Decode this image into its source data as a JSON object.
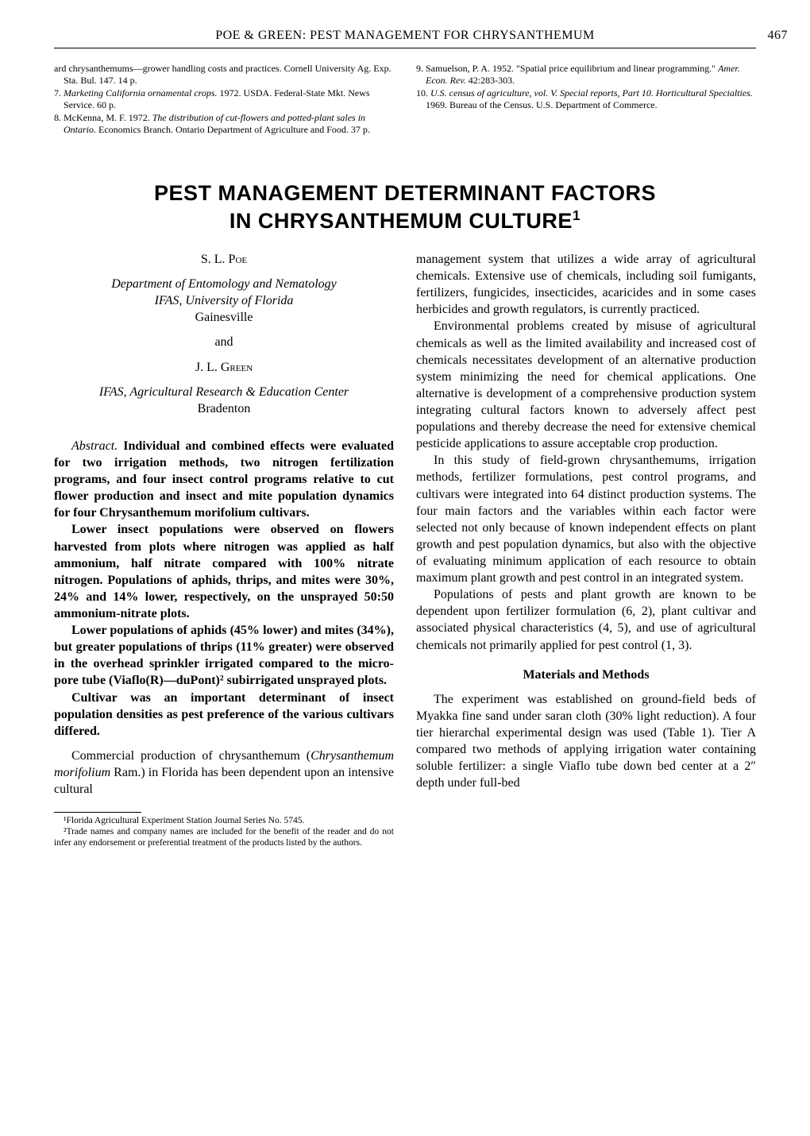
{
  "running_head": "POE & GREEN: PEST MANAGEMENT FOR CHRYSANTHEMUM",
  "page_number": "467",
  "refs_left": [
    {
      "plain_pre": "ard chrysanthemums—grower handling costs and practices. ",
      "ital": "",
      "plain_post": "Cornell University Ag. Exp. Sta. Bul. 147. 14 p."
    },
    {
      "plain_pre": "7. ",
      "ital": "Marketing California ornamental crops.",
      "plain_post": " 1972. USDA. Federal-State Mkt. News Service. 60 p."
    },
    {
      "plain_pre": "8. McKenna, M. F. 1972. ",
      "ital": "The distribution of cut-flowers and potted-plant sales in Ontario.",
      "plain_post": " Economics Branch. Ontario Department of Agriculture and Food. 37 p."
    }
  ],
  "refs_right": [
    {
      "plain_pre": "9. Samuelson, P. A. 1952. \"Spatial price equilibrium and linear programming.\" ",
      "ital": "Amer. Econ. Rev.",
      "plain_post": " 42:283-303."
    },
    {
      "plain_pre": "10. ",
      "ital": "U.S. census of agriculture, vol. V. Special reports, Part 10. Horticultural Specialties.",
      "plain_post": " 1969. Bureau of the Census. U.S. Department of Commerce."
    }
  ],
  "title_line1": "PEST MANAGEMENT DETERMINANT FACTORS",
  "title_line2": "IN CHRYSANTHEMUM CULTURE",
  "title_sup": "1",
  "col_left": {
    "author1": "S. L. Poe",
    "affil1_ital": "Department of Entomology and Nematology\nIFAS, University of Florida",
    "affil1_plain": "Gainesville",
    "and": "and",
    "author2": "J. L. Green",
    "affil2_ital": "IFAS, Agricultural Research & Education Center",
    "affil2_plain": "Bradenton",
    "abstract_label": "Abstract.",
    "abstract_body": " Individual and combined effects were evaluated for two irrigation methods, two nitrogen fertilization programs, and four insect control programs relative to cut flower production and insect and mite population dynamics for four Chrysanthemum morifolium cultivars.",
    "p2": "Lower insect populations were observed on flowers harvested from plots where nitrogen was applied as half ammonium, half nitrate compared with 100% nitrate nitrogen. Populations of aphids, thrips, and mites were 30%, 24% and 14% lower, respectively, on the unsprayed 50:50 ammonium-nitrate plots.",
    "p3": "Lower populations of aphids (45% lower) and mites (34%), but greater populations of thrips (11% greater) were observed in the overhead sprinkler irrigated compared to the micro-pore tube (Viaflo(R)—duPont)² subirrigated unsprayed plots.",
    "p4": "Cultivar was an important determinant of insect population densities as pest preference of the various cultivars differed.",
    "p5_pre": "Commercial production of chrysanthemum (",
    "p5_ital": "Chrysanthemum morifolium",
    "p5_post": " Ram.) in Florida has been dependent upon an intensive cultural",
    "fn1": "¹Florida Agricultural Experiment Station Journal Series No. 5745.",
    "fn2": "²Trade names and company names are included for the benefit of the reader and do not infer any endorsement or preferential treatment of the products listed by the authors."
  },
  "col_right": {
    "p1": "management system that utilizes a wide array of agricultural chemicals. Extensive use of chemicals, including soil fumigants, fertilizers, fungicides, insecticides, acaricides and in some cases herbicides and growth regulators, is currently practiced.",
    "p2": "Environmental problems created by misuse of agricultural chemicals as well as the limited availability and increased cost of chemicals necessitates development of an alternative production system minimizing the need for chemical applications. One alternative is development of a comprehensive production system integrating cultural factors known to adversely affect pest populations and thereby decrease the need for extensive chemical pesticide applications to assure acceptable crop production.",
    "p3": "In this study of field-grown chrysanthemums, irrigation methods, fertilizer formulations, pest control programs, and cultivars were integrated into 64 distinct production systems. The four main factors and the variables within each factor were selected not only because of known independent effects on plant growth and pest population dynamics, but also with the objective of evaluating minimum application of each resource to obtain maximum plant growth and pest control in an integrated system.",
    "p4": "Populations of pests and plant growth are known to be dependent upon fertilizer formulation (6, 2), plant cultivar and associated physical characteristics (4, 5), and use of agricultural chemicals not primarily applied for pest control (1, 3).",
    "section_head": "Materials and Methods",
    "p5": "The experiment was established on ground-field beds of Myakka fine sand under saran cloth (30% light reduction). A four tier hierarchal experimental design was used (Table 1). Tier A compared two methods of applying irrigation water containing soluble fertilizer: a single Viaflo tube down bed center at a 2″ depth under full-bed"
  }
}
